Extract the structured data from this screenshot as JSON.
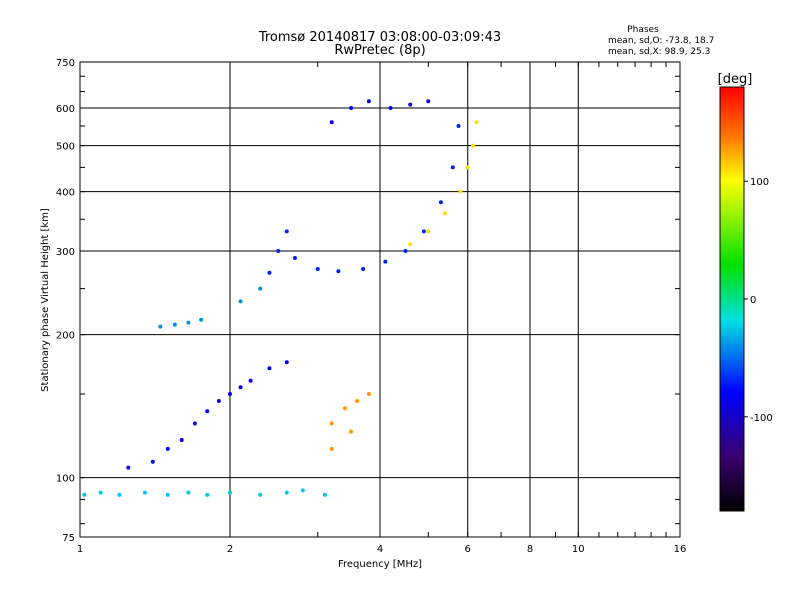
{
  "chart_data": {
    "type": "scatter",
    "title": "Tromsø 20140817 03:08:00-03:09:43",
    "subtitle": "RwPretec (8p)",
    "xlabel": "Frequency [MHz]",
    "ylabel": "Stationary phase Virtual Height [km]",
    "x_scale": "log",
    "y_scale": "log",
    "xlim": [
      1,
      16
    ],
    "ylim": [
      75,
      750
    ],
    "x_ticks": [
      1,
      2,
      4,
      6,
      8,
      10,
      16
    ],
    "x_tick_labels": [
      "1",
      "2",
      "4",
      "6",
      "8",
      "10",
      "16"
    ],
    "y_ticks": [
      75,
      100,
      200,
      300,
      400,
      500,
      600,
      750
    ],
    "y_tick_labels": [
      "75",
      "100",
      "200",
      "300",
      "400",
      "500",
      "600",
      "750"
    ],
    "grid": true,
    "phase_info": {
      "title": "Phases",
      "line1": "mean, sd,O: -73.8, 18.7",
      "line2": "mean, sd,X:  98.9, 25.3"
    },
    "colorbar": {
      "label": "[deg]",
      "range": [
        -180,
        180
      ],
      "ticks": [
        100,
        0,
        -100
      ],
      "tick_labels": [
        "100",
        "0",
        "-100"
      ],
      "colormap": "rainbow"
    },
    "series": [
      {
        "kind": "cluster",
        "points": [
          {
            "f": 1.02,
            "h": 92
          },
          {
            "f": 1.1,
            "h": 93
          },
          {
            "f": 1.2,
            "h": 92
          },
          {
            "f": 1.35,
            "h": 93
          },
          {
            "f": 1.5,
            "h": 92
          },
          {
            "f": 1.65,
            "h": 93
          },
          {
            "f": 1.8,
            "h": 92
          },
          {
            "f": 2.0,
            "h": 93
          },
          {
            "f": 2.3,
            "h": 92
          },
          {
            "f": 2.6,
            "h": 93
          },
          {
            "f": 2.8,
            "h": 94
          },
          {
            "f": 3.1,
            "h": 92
          }
        ],
        "phase": -25
      },
      {
        "kind": "cluster",
        "points": [
          {
            "f": 1.25,
            "h": 105
          },
          {
            "f": 1.4,
            "h": 108
          },
          {
            "f": 1.5,
            "h": 115
          },
          {
            "f": 1.6,
            "h": 120
          },
          {
            "f": 1.7,
            "h": 130
          },
          {
            "f": 1.8,
            "h": 138
          },
          {
            "f": 1.9,
            "h": 145
          },
          {
            "f": 2.0,
            "h": 150
          },
          {
            "f": 2.1,
            "h": 155
          },
          {
            "f": 2.2,
            "h": 160
          },
          {
            "f": 2.4,
            "h": 170
          },
          {
            "f": 2.6,
            "h": 175
          }
        ],
        "phase": -80
      },
      {
        "kind": "cluster",
        "points": [
          {
            "f": 1.45,
            "h": 208
          },
          {
            "f": 1.55,
            "h": 210
          },
          {
            "f": 1.65,
            "h": 212
          },
          {
            "f": 1.75,
            "h": 215
          },
          {
            "f": 2.1,
            "h": 235
          },
          {
            "f": 2.3,
            "h": 250
          }
        ],
        "phase": -40
      },
      {
        "kind": "cluster",
        "points": [
          {
            "f": 2.4,
            "h": 270
          },
          {
            "f": 2.5,
            "h": 300
          },
          {
            "f": 2.6,
            "h": 330
          },
          {
            "f": 2.7,
            "h": 290
          },
          {
            "f": 3.0,
            "h": 275
          },
          {
            "f": 3.3,
            "h": 272
          },
          {
            "f": 3.7,
            "h": 275
          },
          {
            "f": 4.1,
            "h": 285
          },
          {
            "f": 4.5,
            "h": 300
          },
          {
            "f": 4.9,
            "h": 330
          },
          {
            "f": 5.3,
            "h": 380
          },
          {
            "f": 5.6,
            "h": 450
          },
          {
            "f": 5.75,
            "h": 550
          }
        ],
        "phase": -70
      },
      {
        "kind": "cluster",
        "points": [
          {
            "f": 4.6,
            "h": 310
          },
          {
            "f": 5.0,
            "h": 330
          },
          {
            "f": 5.4,
            "h": 360
          },
          {
            "f": 5.8,
            "h": 400
          },
          {
            "f": 6.0,
            "h": 450
          },
          {
            "f": 6.15,
            "h": 500
          },
          {
            "f": 6.25,
            "h": 560
          }
        ],
        "phase": 110
      },
      {
        "kind": "cluster",
        "points": [
          {
            "f": 3.2,
            "h": 560
          },
          {
            "f": 3.5,
            "h": 600
          },
          {
            "f": 3.8,
            "h": 620
          },
          {
            "f": 4.2,
            "h": 600
          },
          {
            "f": 4.6,
            "h": 610
          },
          {
            "f": 5.0,
            "h": 620
          }
        ],
        "phase": -80
      },
      {
        "kind": "cluster",
        "points": [
          {
            "f": 3.2,
            "h": 130
          },
          {
            "f": 3.4,
            "h": 140
          },
          {
            "f": 3.6,
            "h": 145
          },
          {
            "f": 3.8,
            "h": 150
          },
          {
            "f": 3.5,
            "h": 125
          },
          {
            "f": 3.2,
            "h": 115
          }
        ],
        "phase": 130
      }
    ]
  }
}
